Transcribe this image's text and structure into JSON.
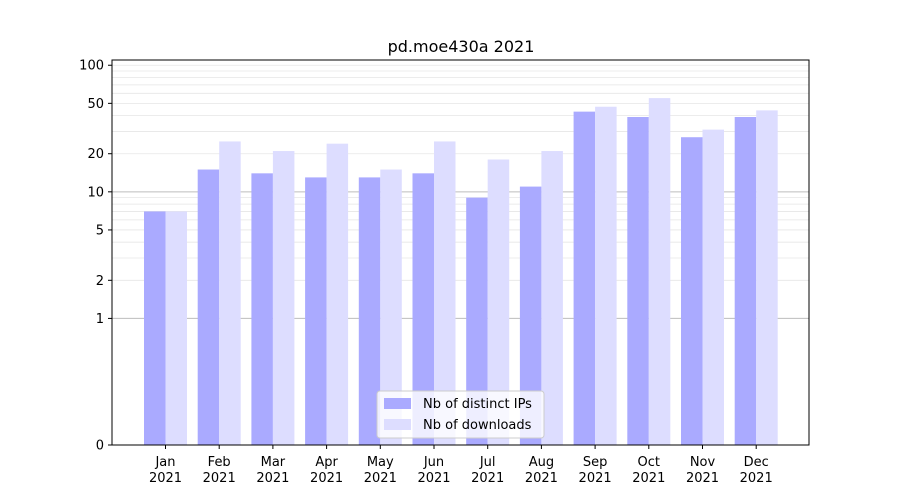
{
  "chart_data": {
    "type": "bar",
    "title": "pd.moe430a 2021",
    "xlabel": "",
    "ylabel": "",
    "y_scale": "symlog",
    "ylim": [
      0,
      110
    ],
    "yticks": [
      0,
      1,
      2,
      5,
      10,
      20,
      50,
      100
    ],
    "categories": [
      [
        "Jan",
        "2021"
      ],
      [
        "Feb",
        "2021"
      ],
      [
        "Mar",
        "2021"
      ],
      [
        "Apr",
        "2021"
      ],
      [
        "May",
        "2021"
      ],
      [
        "Jun",
        "2021"
      ],
      [
        "Jul",
        "2021"
      ],
      [
        "Aug",
        "2021"
      ],
      [
        "Sep",
        "2021"
      ],
      [
        "Oct",
        "2021"
      ],
      [
        "Nov",
        "2021"
      ],
      [
        "Dec",
        "2021"
      ]
    ],
    "series": [
      {
        "name": "Nb of distinct IPs",
        "color": "#aaaaff",
        "values": [
          7,
          15,
          14,
          13,
          13,
          14,
          9,
          11,
          43,
          39,
          27,
          39
        ]
      },
      {
        "name": "Nb of downloads",
        "color": "#ddddff",
        "values": [
          7,
          25,
          21,
          24,
          15,
          25,
          18,
          21,
          47,
          55,
          31,
          44
        ]
      }
    ],
    "grid": true,
    "legend_position": "lower center"
  }
}
